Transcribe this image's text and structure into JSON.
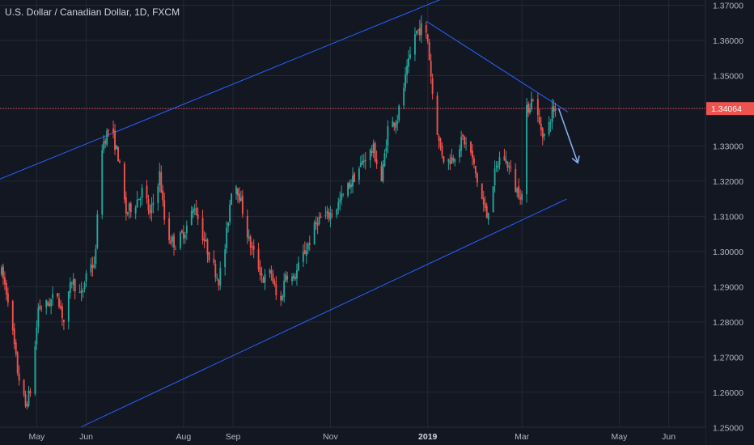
{
  "chart_title": "U.S. Dollar / Canadian Dollar, 1D, FXCM",
  "colors": {
    "background": "#131722",
    "grid": "#242833",
    "up": "#26a69a",
    "down": "#ef5350",
    "trendline": "#2962ff",
    "price_line": "#ef5350",
    "arrow": "#8ab4f8",
    "axis_text": "#b2b5be"
  },
  "chart_data": {
    "type": "candlestick",
    "title": "U.S. Dollar / Canadian Dollar, 1D, FXCM",
    "x_range": [
      "2018-04-08",
      "2019-06-24"
    ],
    "y_range": [
      1.245,
      1.3715
    ],
    "y_ticks": [
      "1.37000",
      "1.36000",
      "1.35000",
      "1.34064",
      "1.33000",
      "1.32000",
      "1.31000",
      "1.30000",
      "1.29000",
      "1.28000",
      "1.27000",
      "1.26000",
      "1.25000"
    ],
    "x_ticks": [
      {
        "date": "2018-05-01",
        "label": "May",
        "bold": false
      },
      {
        "date": "2018-06-01",
        "label": "Jun",
        "bold": false
      },
      {
        "date": "2018-08-01",
        "label": "Aug",
        "bold": false
      },
      {
        "date": "2018-09-01",
        "label": "Sep",
        "bold": false
      },
      {
        "date": "2018-11-01",
        "label": "Nov",
        "bold": false
      },
      {
        "date": "2019-01-01",
        "label": "2019",
        "bold": true
      },
      {
        "date": "2019-03-01",
        "label": "Mar",
        "bold": false
      },
      {
        "date": "2019-05-01",
        "label": "May",
        "bold": false
      },
      {
        "date": "2019-06-01",
        "label": "Jun",
        "bold": false
      }
    ],
    "current_price": 1.34064,
    "grid": true,
    "price_path": [
      [
        "2018-04-09",
        1.294
      ],
      [
        "2018-04-13",
        1.287
      ],
      [
        "2018-04-19",
        1.266
      ],
      [
        "2018-04-24",
        1.256
      ],
      [
        "2018-04-28",
        1.262
      ],
      [
        "2018-05-02",
        1.284
      ],
      [
        "2018-05-08",
        1.285
      ],
      [
        "2018-05-14",
        1.288
      ],
      [
        "2018-05-18",
        1.28
      ],
      [
        "2018-05-23",
        1.292
      ],
      [
        "2018-05-29",
        1.287
      ],
      [
        "2018-06-03",
        1.298
      ],
      [
        "2018-06-06",
        1.295
      ],
      [
        "2018-06-11",
        1.33
      ],
      [
        "2018-06-16",
        1.336
      ],
      [
        "2018-06-21",
        1.327
      ],
      [
        "2018-06-26",
        1.311
      ],
      [
        "2018-07-02",
        1.314
      ],
      [
        "2018-07-07",
        1.318
      ],
      [
        "2018-07-11",
        1.31
      ],
      [
        "2018-07-17",
        1.322
      ],
      [
        "2018-07-21",
        1.305
      ],
      [
        "2018-07-27",
        1.302
      ],
      [
        "2018-08-02",
        1.306
      ],
      [
        "2018-08-08",
        1.313
      ],
      [
        "2018-08-12",
        1.306
      ],
      [
        "2018-08-17",
        1.299
      ],
      [
        "2018-08-23",
        1.292
      ],
      [
        "2018-08-27",
        1.301
      ],
      [
        "2018-09-01",
        1.322
      ],
      [
        "2018-09-05",
        1.316
      ],
      [
        "2018-09-11",
        1.303
      ],
      [
        "2018-09-16",
        1.297
      ],
      [
        "2018-09-20",
        1.292
      ],
      [
        "2018-09-25",
        1.294
      ],
      [
        "2018-09-30",
        1.283
      ],
      [
        "2018-10-04",
        1.294
      ],
      [
        "2018-10-09",
        1.292
      ],
      [
        "2018-10-14",
        1.298
      ],
      [
        "2018-10-19",
        1.303
      ],
      [
        "2018-10-24",
        1.309
      ],
      [
        "2018-10-30",
        1.31
      ],
      [
        "2018-11-04",
        1.312
      ],
      [
        "2018-11-09",
        1.316
      ],
      [
        "2018-11-13",
        1.319
      ],
      [
        "2018-11-17",
        1.322
      ],
      [
        "2018-11-23",
        1.327
      ],
      [
        "2018-11-28",
        1.329
      ],
      [
        "2018-12-03",
        1.32
      ],
      [
        "2018-12-07",
        1.335
      ],
      [
        "2018-12-13",
        1.338
      ],
      [
        "2018-12-18",
        1.349
      ],
      [
        "2018-12-24",
        1.362
      ],
      [
        "2018-12-29",
        1.364
      ],
      [
        "2019-01-01",
        1.36
      ],
      [
        "2019-01-04",
        1.345
      ],
      [
        "2019-01-08",
        1.331
      ],
      [
        "2019-01-12",
        1.325
      ],
      [
        "2019-01-17",
        1.327
      ],
      [
        "2019-01-23",
        1.332
      ],
      [
        "2019-01-28",
        1.328
      ],
      [
        "2019-02-02",
        1.318
      ],
      [
        "2019-02-07",
        1.31
      ],
      [
        "2019-02-12",
        1.322
      ],
      [
        "2019-02-16",
        1.328
      ],
      [
        "2019-02-21",
        1.324
      ],
      [
        "2019-02-25",
        1.318
      ],
      [
        "2019-03-01",
        1.316
      ],
      [
        "2019-03-04",
        1.34
      ],
      [
        "2019-03-08",
        1.344
      ],
      [
        "2019-03-12",
        1.336
      ],
      [
        "2019-03-16",
        1.332
      ],
      [
        "2019-03-20",
        1.34
      ],
      [
        "2019-03-23",
        1.341
      ]
    ],
    "drawings": [
      {
        "name": "upper-channel-line",
        "type": "line",
        "start": [
          "2018-04-08",
          1.3206
        ],
        "end": [
          "2019-01-12",
          1.3722
        ]
      },
      {
        "name": "lower-channel-line",
        "type": "line",
        "start": [
          "2018-05-07",
          1.2455
        ],
        "end": [
          "2019-03-29",
          1.3149
        ]
      },
      {
        "name": "descending-trendline",
        "type": "line",
        "start": [
          "2018-12-31",
          1.3655
        ],
        "end": [
          "2019-03-30",
          1.3396
        ]
      },
      {
        "name": "forecast-arrow",
        "type": "arrow",
        "start": [
          "2019-03-24",
          1.3407
        ],
        "end": [
          "2019-04-05",
          1.3252
        ]
      }
    ]
  }
}
